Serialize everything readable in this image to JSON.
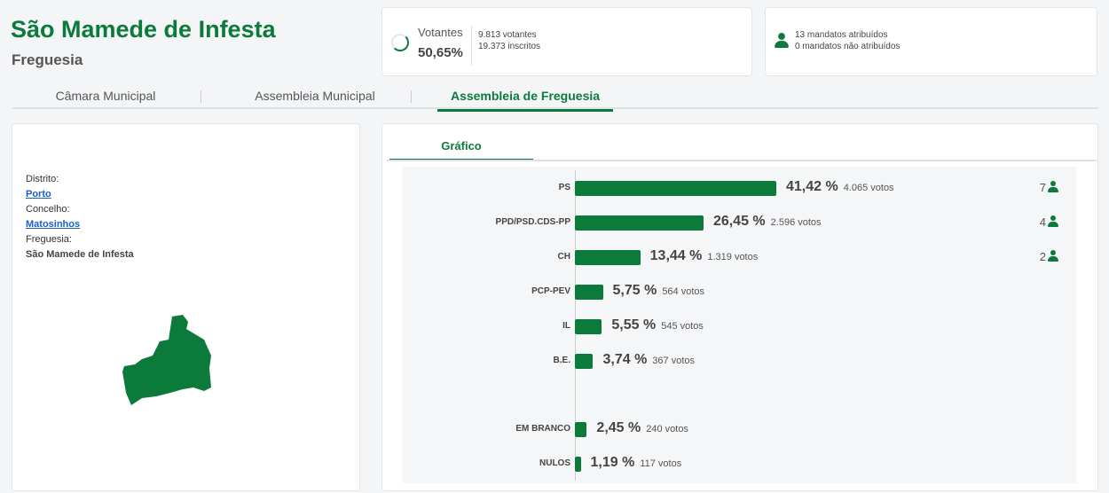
{
  "header": {
    "title": "São Mamede de Infesta",
    "subtitle": "Freguesia"
  },
  "turnout": {
    "label": "Votantes",
    "percent": "50,65%",
    "fraction": 0.5065,
    "voters": "9.813 votantes",
    "registered": "19.373 inscritos"
  },
  "mandates": {
    "assigned": "13 mandatos atribuídos",
    "unassigned": "0 mandatos não atribuídos"
  },
  "tabs": [
    {
      "label": "Câmara Municipal"
    },
    {
      "label": "Assembleia Municipal"
    },
    {
      "label": "Assembleia de Freguesia",
      "active": true
    }
  ],
  "location": {
    "district_label": "Distrito:",
    "district": "Porto",
    "municipality_label": "Concelho:",
    "municipality": "Matosinhos",
    "parish_label": "Freguesia:",
    "parish": "São Mamede de Infesta"
  },
  "chart_tab": "Gráfico",
  "colors": {
    "accent": "#0b7a3b"
  },
  "chart_data": {
    "type": "bar",
    "orientation": "horizontal",
    "categories": [
      "PS",
      "PPD/PSD.CDS-PP",
      "CH",
      "PCP-PEV",
      "IL",
      "B.E.",
      "EM BRANCO",
      "NULOS"
    ],
    "values": [
      41.42,
      26.45,
      13.44,
      5.75,
      5.55,
      3.74,
      2.45,
      1.19
    ],
    "value_labels": [
      "41,42 %",
      "26,45 %",
      "13,44 %",
      "5,75 %",
      "5,55 %",
      "3,74 %",
      "2,45 %",
      "1,19 %"
    ],
    "votes": [
      "4.065 votos",
      "2.596 votos",
      "1.319 votos",
      "564 votos",
      "545 votos",
      "367 votos",
      "240 votos",
      "117 votos"
    ],
    "seats": [
      "7",
      "4",
      "2",
      "",
      "",
      "",
      "",
      ""
    ]
  }
}
